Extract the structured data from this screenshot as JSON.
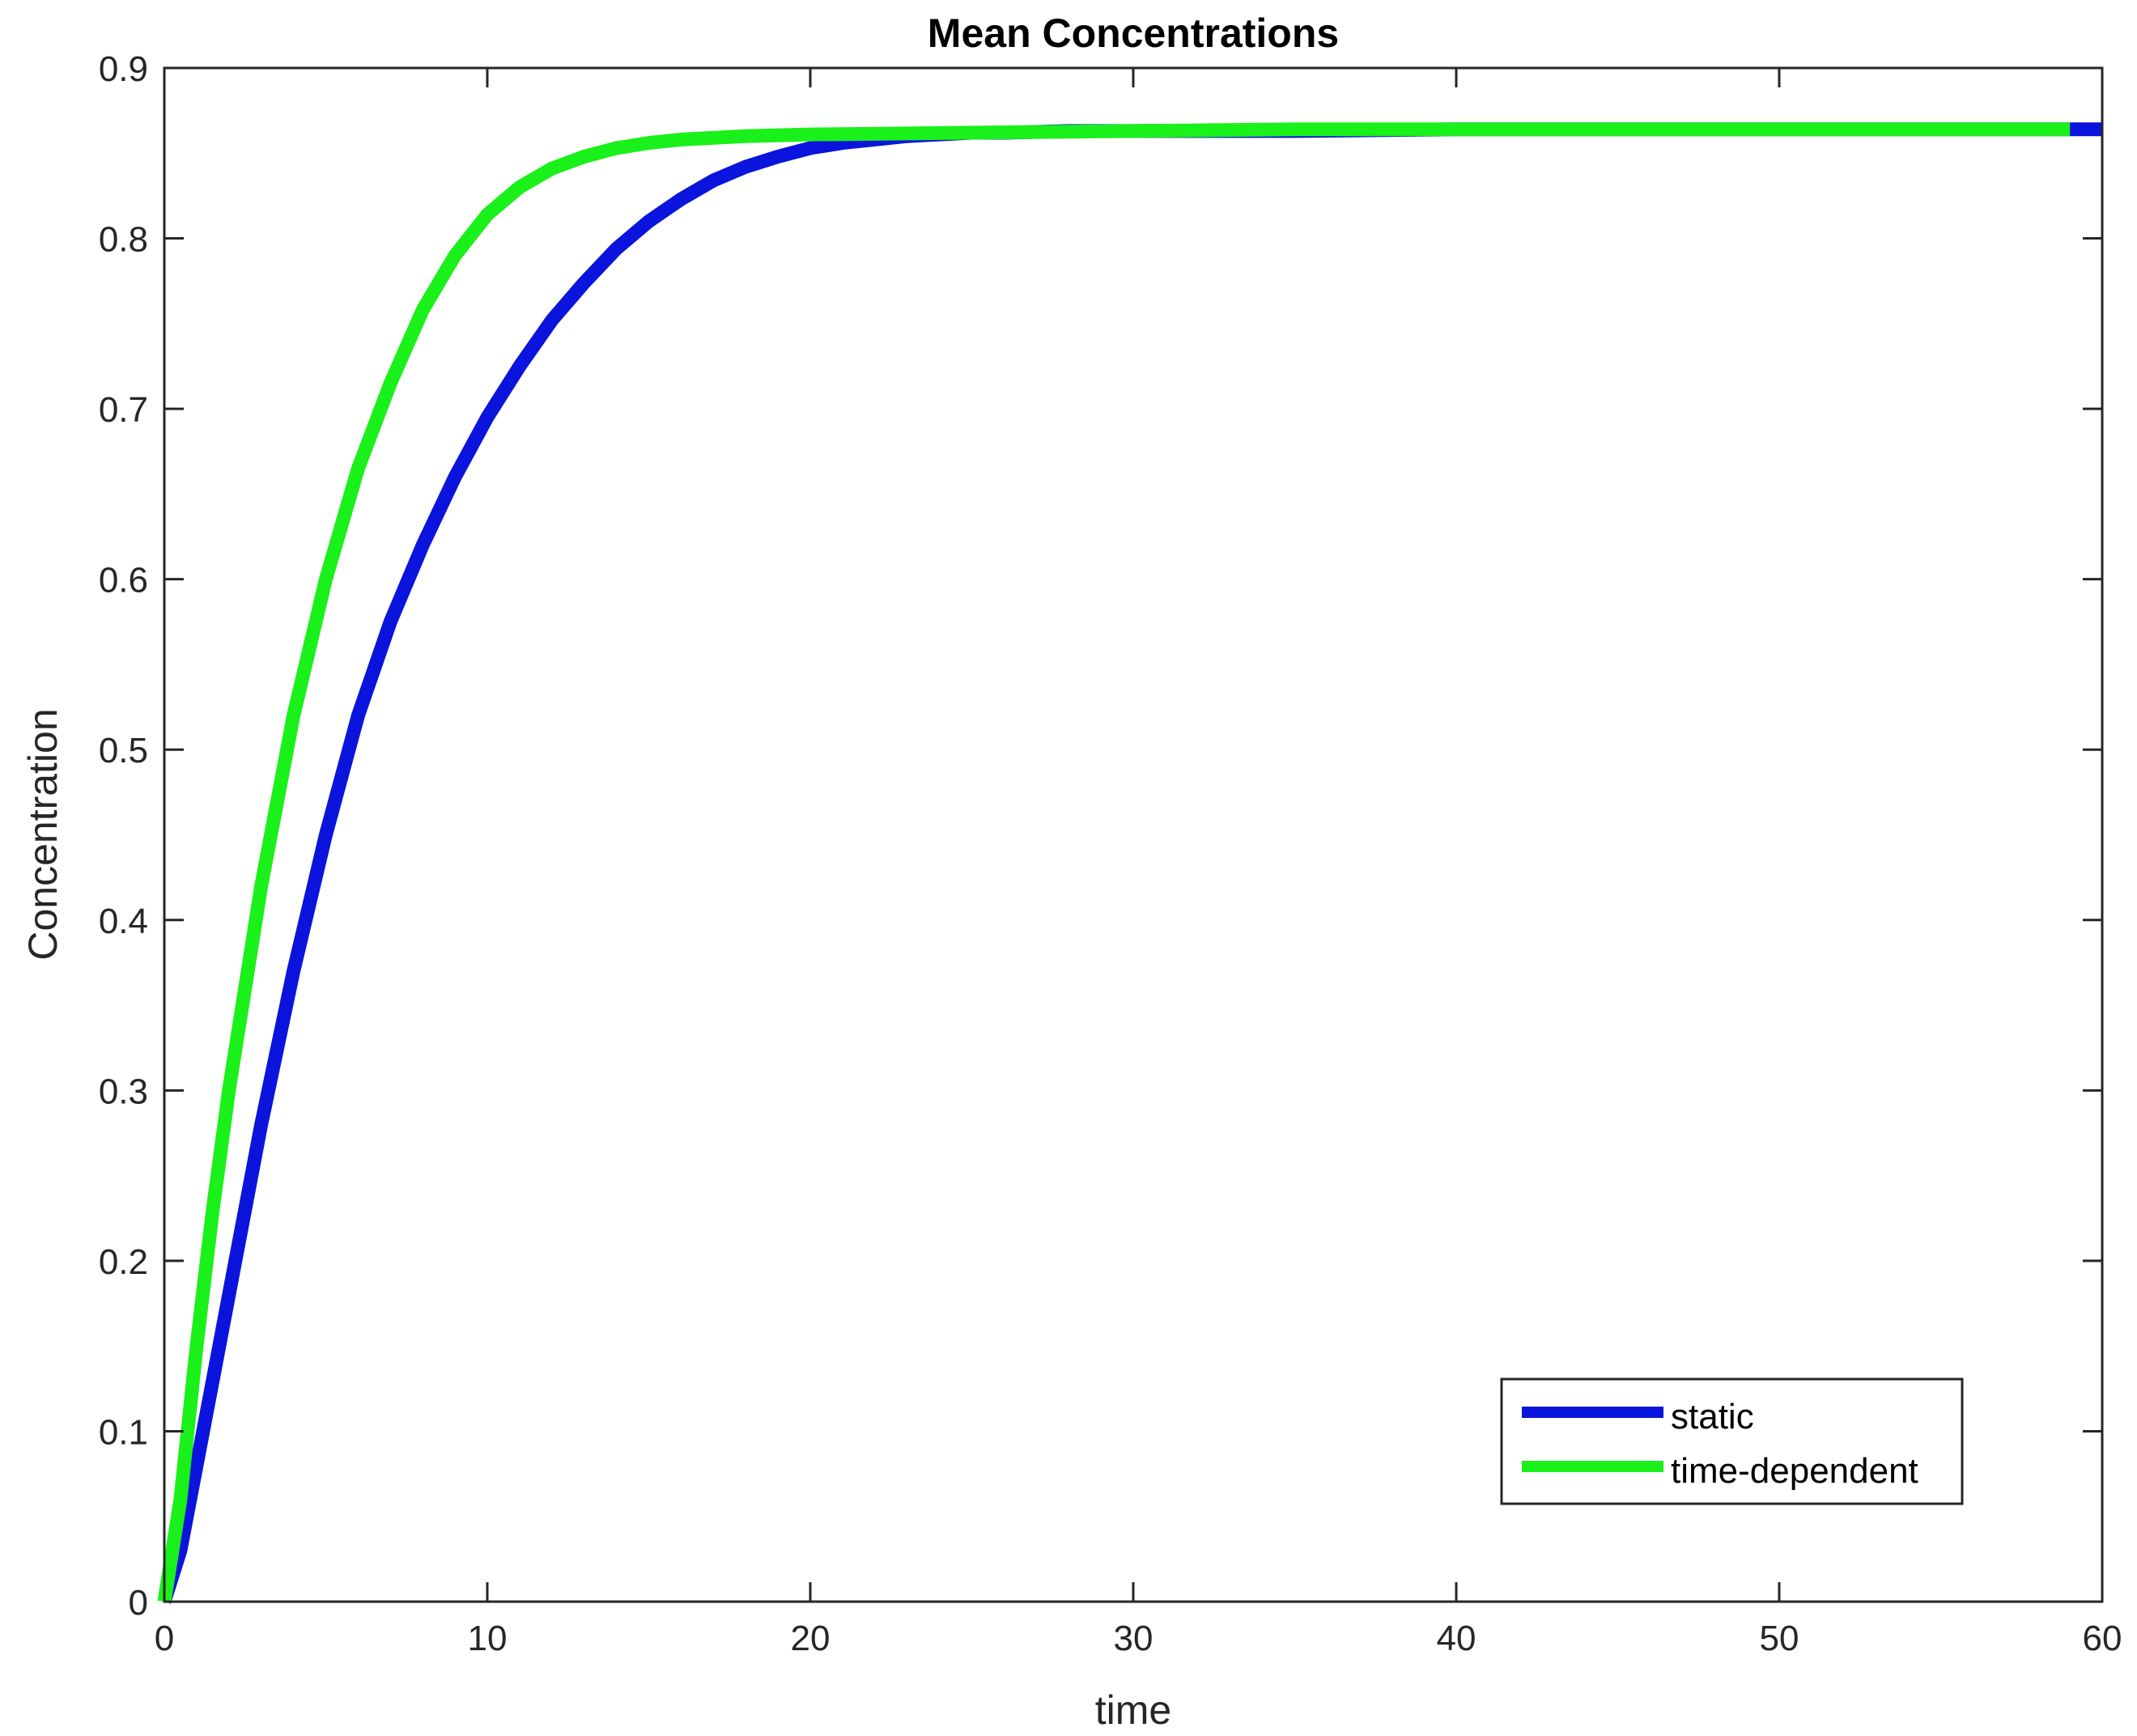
{
  "chart_data": {
    "type": "line",
    "title": "Mean Concentrations",
    "xlabel": "time",
    "ylabel": "Concentration",
    "xlim": [
      0,
      60
    ],
    "ylim": [
      0,
      0.9
    ],
    "xticks": [
      0,
      10,
      20,
      30,
      40,
      50,
      60
    ],
    "xtick_labels": [
      "0",
      "10",
      "20",
      "30",
      "40",
      "50",
      "60"
    ],
    "yticks": [
      0,
      0.1,
      0.2,
      0.3,
      0.4,
      0.5,
      0.6,
      0.7,
      0.8,
      0.9
    ],
    "ytick_labels": [
      "0",
      "0.1",
      "0.2",
      "0.3",
      "0.4",
      "0.5",
      "0.6",
      "0.7",
      "0.8",
      "0.9"
    ],
    "grid": false,
    "legend_position": "bottom-right",
    "series": [
      {
        "name": "static",
        "color": "#0a14dc",
        "x": [
          0,
          0.5,
          1,
          1.5,
          2,
          3,
          4,
          5,
          6,
          7,
          8,
          9,
          10,
          11,
          12,
          13,
          14,
          15,
          16,
          17,
          18,
          19,
          20,
          21,
          22,
          23,
          24,
          25,
          26,
          28,
          30,
          35,
          40,
          45,
          50,
          55,
          60
        ],
        "y": [
          0,
          0.03,
          0.08,
          0.13,
          0.18,
          0.28,
          0.37,
          0.45,
          0.52,
          0.575,
          0.62,
          0.66,
          0.695,
          0.725,
          0.752,
          0.774,
          0.794,
          0.81,
          0.823,
          0.834,
          0.842,
          0.848,
          0.853,
          0.856,
          0.858,
          0.86,
          0.861,
          0.862,
          0.862,
          0.863,
          0.863,
          0.863,
          0.864,
          0.864,
          0.864,
          0.864,
          0.864
        ]
      },
      {
        "name": "time-dependent",
        "color": "#1af01a",
        "x": [
          0,
          0.5,
          1,
          1.5,
          2,
          3,
          4,
          5,
          6,
          7,
          8,
          9,
          10,
          11,
          12,
          13,
          14,
          15,
          16,
          18,
          20,
          25,
          30,
          35,
          40,
          45,
          50,
          55,
          59
        ],
        "y": [
          0,
          0.06,
          0.15,
          0.23,
          0.3,
          0.42,
          0.52,
          0.6,
          0.665,
          0.715,
          0.758,
          0.79,
          0.814,
          0.83,
          0.841,
          0.848,
          0.853,
          0.856,
          0.858,
          0.86,
          0.861,
          0.862,
          0.863,
          0.864,
          0.864,
          0.864,
          0.864,
          0.864,
          0.864
        ]
      }
    ]
  }
}
